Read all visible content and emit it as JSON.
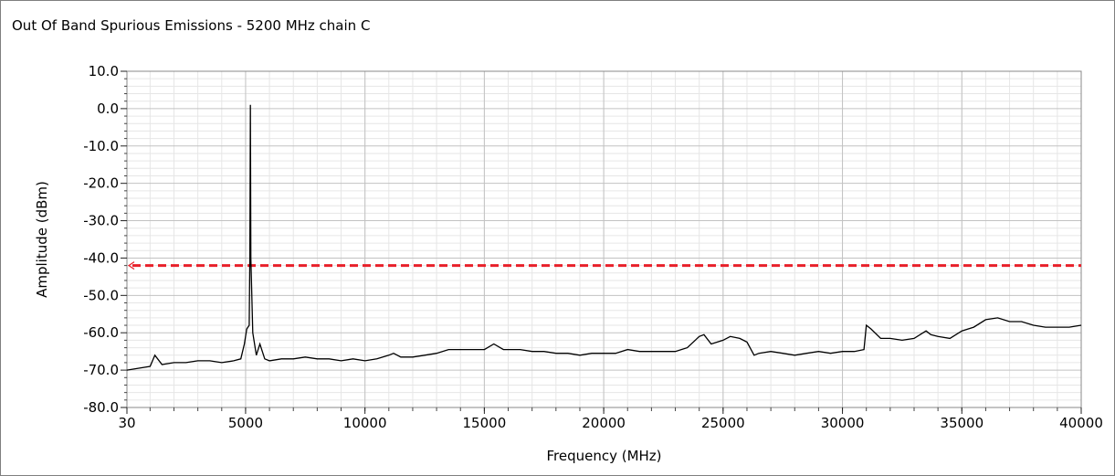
{
  "chart_data": {
    "type": "line",
    "title": "Out Of Band Spurious Emissions - 5200 MHz chain C",
    "xlabel": "Frequency (MHz)",
    "ylabel": "Amplitude (dBm)",
    "xlim": [
      30,
      40000
    ],
    "ylim": [
      -80,
      10
    ],
    "x_ticks": [
      30,
      5000,
      10000,
      15000,
      20000,
      25000,
      30000,
      35000,
      40000
    ],
    "x_tick_labels": [
      "30",
      "5000",
      "10000",
      "15000",
      "20000",
      "25000",
      "30000",
      "35000",
      "40000"
    ],
    "y_ticks": [
      10,
      0,
      -10,
      -20,
      -30,
      -40,
      -50,
      -60,
      -70,
      -80
    ],
    "y_tick_labels": [
      "10.0",
      "0.0",
      "-10.0",
      "-20.0",
      "-30.0",
      "-40.0",
      "-50.0",
      "-60.0",
      "-70.0",
      "-80.0"
    ],
    "grid": true,
    "limit_line": {
      "y": -42,
      "color": "#e8202a",
      "style": "dashed"
    },
    "series": [
      {
        "color": "#000000",
        "x": [
          30,
          500,
          1000,
          1200,
          1500,
          2000,
          2500,
          3000,
          3500,
          4000,
          4500,
          4800,
          4950,
          5050,
          5150,
          5180,
          5200,
          5220,
          5300,
          5450,
          5600,
          5800,
          6000,
          6500,
          7000,
          7500,
          8000,
          8500,
          9000,
          9500,
          10000,
          10500,
          11000,
          11200,
          11500,
          12000,
          12500,
          13000,
          13500,
          14000,
          14500,
          15000,
          15400,
          15800,
          16500,
          17000,
          17500,
          18000,
          18500,
          19000,
          19500,
          20000,
          20500,
          21000,
          21500,
          22000,
          22500,
          23000,
          23500,
          24000,
          24200,
          24500,
          25000,
          25300,
          25700,
          26000,
          26300,
          26500,
          27000,
          27500,
          28000,
          28500,
          29000,
          29500,
          30000,
          30500,
          30900,
          31000,
          31200,
          31600,
          32000,
          32500,
          33000,
          33500,
          33700,
          34000,
          34500,
          35000,
          35500,
          36000,
          36500,
          37000,
          37500,
          38000,
          38500,
          39000,
          39500,
          40000
        ],
        "y": [
          -70,
          -69.5,
          -69,
          -66,
          -68.5,
          -68,
          -68,
          -67.5,
          -67.5,
          -68,
          -67.5,
          -67,
          -63,
          -59,
          -58,
          -40,
          1,
          -40,
          -60,
          -66,
          -63,
          -67,
          -67.5,
          -67,
          -67,
          -66.5,
          -67,
          -67,
          -67.5,
          -67,
          -67.5,
          -67,
          -66,
          -65.5,
          -66.5,
          -66.5,
          -66,
          -65.5,
          -64.5,
          -64.5,
          -64.5,
          -64.5,
          -63,
          -64.5,
          -64.5,
          -65,
          -65,
          -65.5,
          -65.5,
          -66,
          -65.5,
          -65.5,
          -65.5,
          -64.5,
          -65,
          -65,
          -65,
          -65,
          -64,
          -61,
          -60.5,
          -63,
          -62,
          -61,
          -61.5,
          -62.5,
          -66,
          -65.5,
          -65,
          -65.5,
          -66,
          -65.5,
          -65,
          -65.5,
          -65,
          -65,
          -64.5,
          -58,
          -59,
          -61.5,
          -61.5,
          -62,
          -61.5,
          -59.5,
          -60.5,
          -61,
          -61.5,
          -59.5,
          -58.5,
          -56.5,
          -56,
          -57,
          -57,
          -58,
          -58.5,
          -58.5,
          -58.5,
          -58
        ]
      }
    ]
  }
}
